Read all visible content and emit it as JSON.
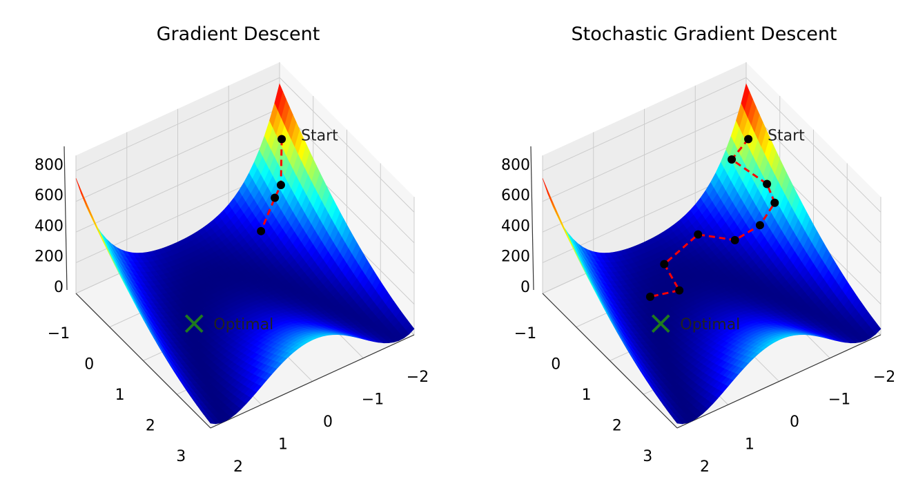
{
  "chart_data": [
    {
      "type": "surface",
      "title": "Gradient Descent",
      "xlabel": "",
      "ylabel": "",
      "zlabel": "",
      "xlim": [
        -2,
        2
      ],
      "ylim": [
        -1,
        3
      ],
      "zlim": [
        0,
        900
      ],
      "x_ticks": [
        "−2",
        "−1",
        "0",
        "1",
        "2"
      ],
      "y_ticks": [
        "−1",
        "0",
        "1",
        "2",
        "3"
      ],
      "z_ticks": [
        "0",
        "200",
        "400",
        "600",
        "800"
      ],
      "colormap": "jet",
      "path": [
        {
          "x": -1.83,
          "y": -0.68
        },
        {
          "x": -1.63,
          "y": -0.4
        },
        {
          "x": -1.51,
          "y": -0.4
        },
        {
          "x": -1.16,
          "y": -0.28
        }
      ],
      "optimal": {
        "x": 1,
        "y": 1,
        "z": 0
      },
      "start_label": "Start",
      "optimal_label": "Optimal"
    },
    {
      "type": "surface",
      "title": "Stochastic Gradient Descent",
      "xlabel": "",
      "ylabel": "",
      "zlabel": "",
      "xlim": [
        -2,
        2
      ],
      "ylim": [
        -1,
        3
      ],
      "zlim": [
        0,
        900
      ],
      "x_ticks": [
        "−2",
        "−1",
        "0",
        "1",
        "2"
      ],
      "y_ticks": [
        "−1",
        "0",
        "1",
        "2",
        "3"
      ],
      "z_ticks": [
        "0",
        "200",
        "400",
        "600",
        "800"
      ],
      "colormap": "jet",
      "path": [
        {
          "x": -1.83,
          "y": -0.68
        },
        {
          "x": -1.61,
          "y": -0.84
        },
        {
          "x": -1.8,
          "y": -0.08
        },
        {
          "x": -1.78,
          "y": 0.18
        },
        {
          "x": -1.53,
          "y": 0.12
        },
        {
          "x": -1.17,
          "y": -0.08
        },
        {
          "x": -0.79,
          "y": -0.6
        },
        {
          "x": -0.02,
          "y": -0.44
        },
        {
          "x": 0.12,
          "y": 0.22
        },
        {
          "x": 0.6,
          "y": 0.08
        }
      ],
      "optimal": {
        "x": 1,
        "y": 1,
        "z": 0
      },
      "start_label": "Start",
      "optimal_label": "Optimal"
    }
  ],
  "colors": {
    "path": "#ff0000",
    "marker": "#000000",
    "optimal": "#1f7a1f",
    "pane": "#f2f2f2",
    "grid": "#cccccc"
  }
}
